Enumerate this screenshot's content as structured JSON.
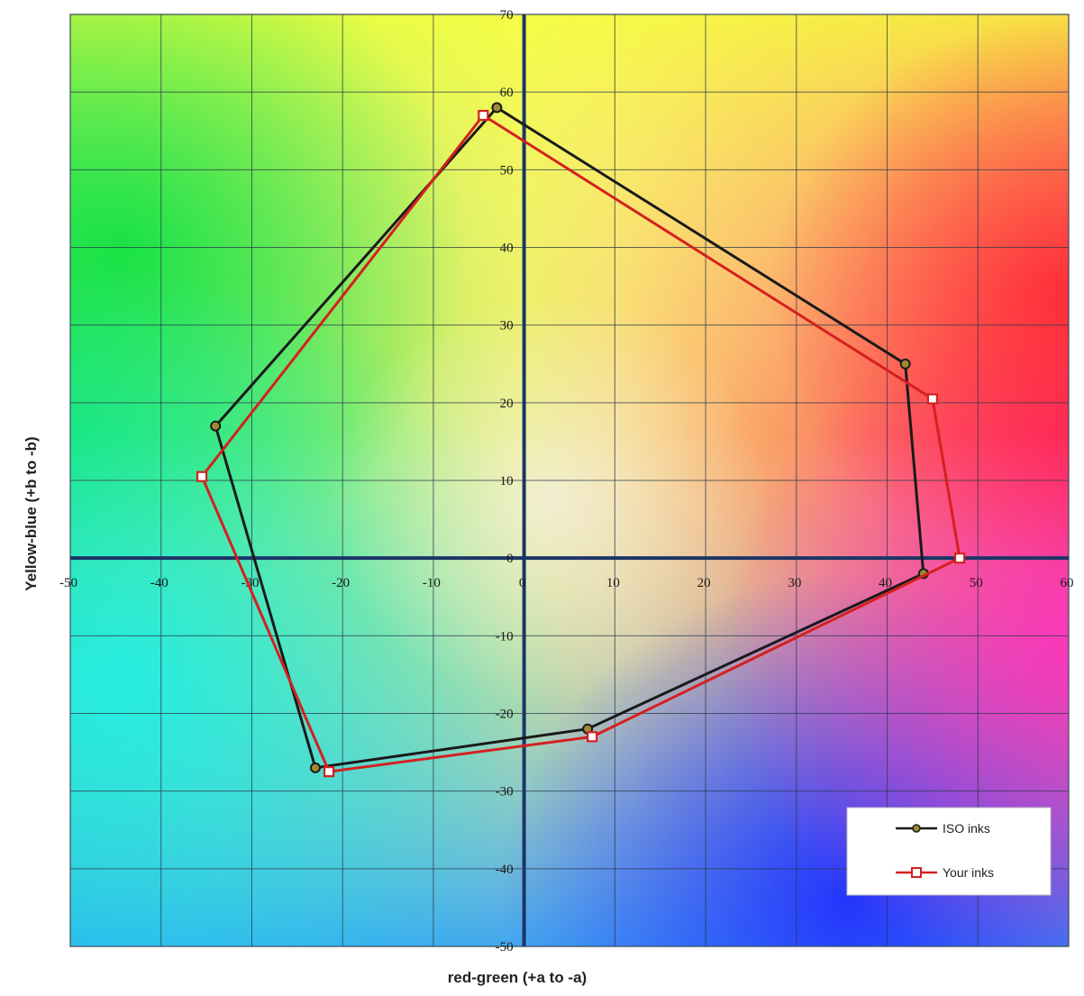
{
  "chart_data": {
    "type": "scatter",
    "title": "",
    "xlabel": "red-green (+a to -a)",
    "ylabel": "Yellow-blue (+b to -b)",
    "xlim": [
      -50,
      60
    ],
    "ylim": [
      -50,
      70
    ],
    "xticks": [
      -50,
      -40,
      -30,
      -20,
      -10,
      0,
      10,
      20,
      30,
      40,
      50,
      60
    ],
    "yticks": [
      70,
      60,
      50,
      40,
      30,
      20,
      10,
      0,
      -10,
      -20,
      -30,
      -40,
      -50
    ],
    "grid": true,
    "legend_position": "bottom-right",
    "series": [
      {
        "name": "ISO inks",
        "color": "#1a1a1a",
        "marker": "circle",
        "x": [
          -3,
          42,
          44,
          7,
          -23,
          -34,
          -3
        ],
        "y": [
          58,
          25,
          -2,
          -22,
          -27,
          17,
          58
        ]
      },
      {
        "name": "Your inks",
        "color": "#d42020",
        "marker": "square",
        "x": [
          -4.5,
          45,
          48,
          7.5,
          -21.5,
          -35.5,
          -4.5
        ],
        "y": [
          57,
          20.5,
          0,
          -23,
          -27.5,
          10.5,
          57
        ]
      }
    ]
  }
}
